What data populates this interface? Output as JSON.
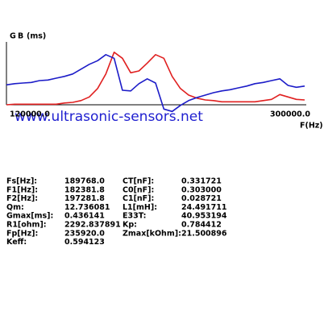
{
  "chart_data": {
    "type": "line",
    "ylabel": "(ms)",
    "xlabel": "F(Hz)",
    "x": [
      120000,
      125000,
      130000,
      135000,
      140000,
      145000,
      150000,
      155000,
      160000,
      165000,
      170000,
      175000,
      180000,
      185000,
      190000,
      195000,
      200000,
      205000,
      210000,
      215000,
      220000,
      225000,
      230000,
      235000,
      240000,
      245000,
      250000,
      255000,
      260000,
      265000,
      270000,
      275000,
      280000,
      285000,
      290000,
      295000,
      300000
    ],
    "series": [
      {
        "name": "G",
        "color": "#e02020",
        "values": [
          0,
          1,
          1,
          1,
          1,
          1,
          1,
          3,
          4,
          7,
          13,
          27,
          51,
          87,
          77,
          53,
          56,
          69,
          83,
          77,
          47,
          27,
          16,
          11,
          8,
          7,
          5,
          5,
          5,
          5,
          5,
          7,
          9,
          17,
          13,
          9,
          8
        ]
      },
      {
        "name": "B",
        "color": "#1c1cc8",
        "values": [
          33,
          35,
          36,
          37,
          40,
          41,
          44,
          47,
          51,
          59,
          67,
          73,
          83,
          77,
          24,
          23,
          35,
          43,
          36,
          -7,
          -11,
          -1,
          7,
          12,
          16,
          20,
          23,
          25,
          28,
          31,
          35,
          37,
          40,
          43,
          32,
          29,
          31
        ]
      }
    ],
    "xlim": [
      120000,
      300000
    ],
    "xticks": [
      {
        "value": 120000,
        "label": "120000.0"
      },
      {
        "value": 300000,
        "label": "300000.0"
      }
    ],
    "ylim": [
      -20,
      100
    ]
  },
  "watermark": "www.ultrasonic-sensors.net",
  "table": {
    "rows": [
      [
        "Fs[Hz]:",
        "189768.0",
        "CT[nF]:",
        "0.331721"
      ],
      [
        "F1[Hz]:",
        "182381.8",
        "C0[nF]:",
        "0.303000"
      ],
      [
        "F2[Hz]:",
        "197281.8",
        "C1[nF]:",
        "0.028721"
      ],
      [
        "Qm:",
        "12.736081",
        "L1[mH]:",
        "24.491711"
      ],
      [
        "Gmax[ms]:",
        "0.436141",
        "E33T:",
        "40.953194"
      ],
      [
        "R1[ohm]:",
        "2292.837891",
        "Kp:",
        "0.784412"
      ],
      [
        "Fp[Hz]:",
        "235920.0",
        "Zmax[kOhm]:",
        "21.500896"
      ],
      [
        "Keff:",
        "0.594123"
      ]
    ]
  }
}
